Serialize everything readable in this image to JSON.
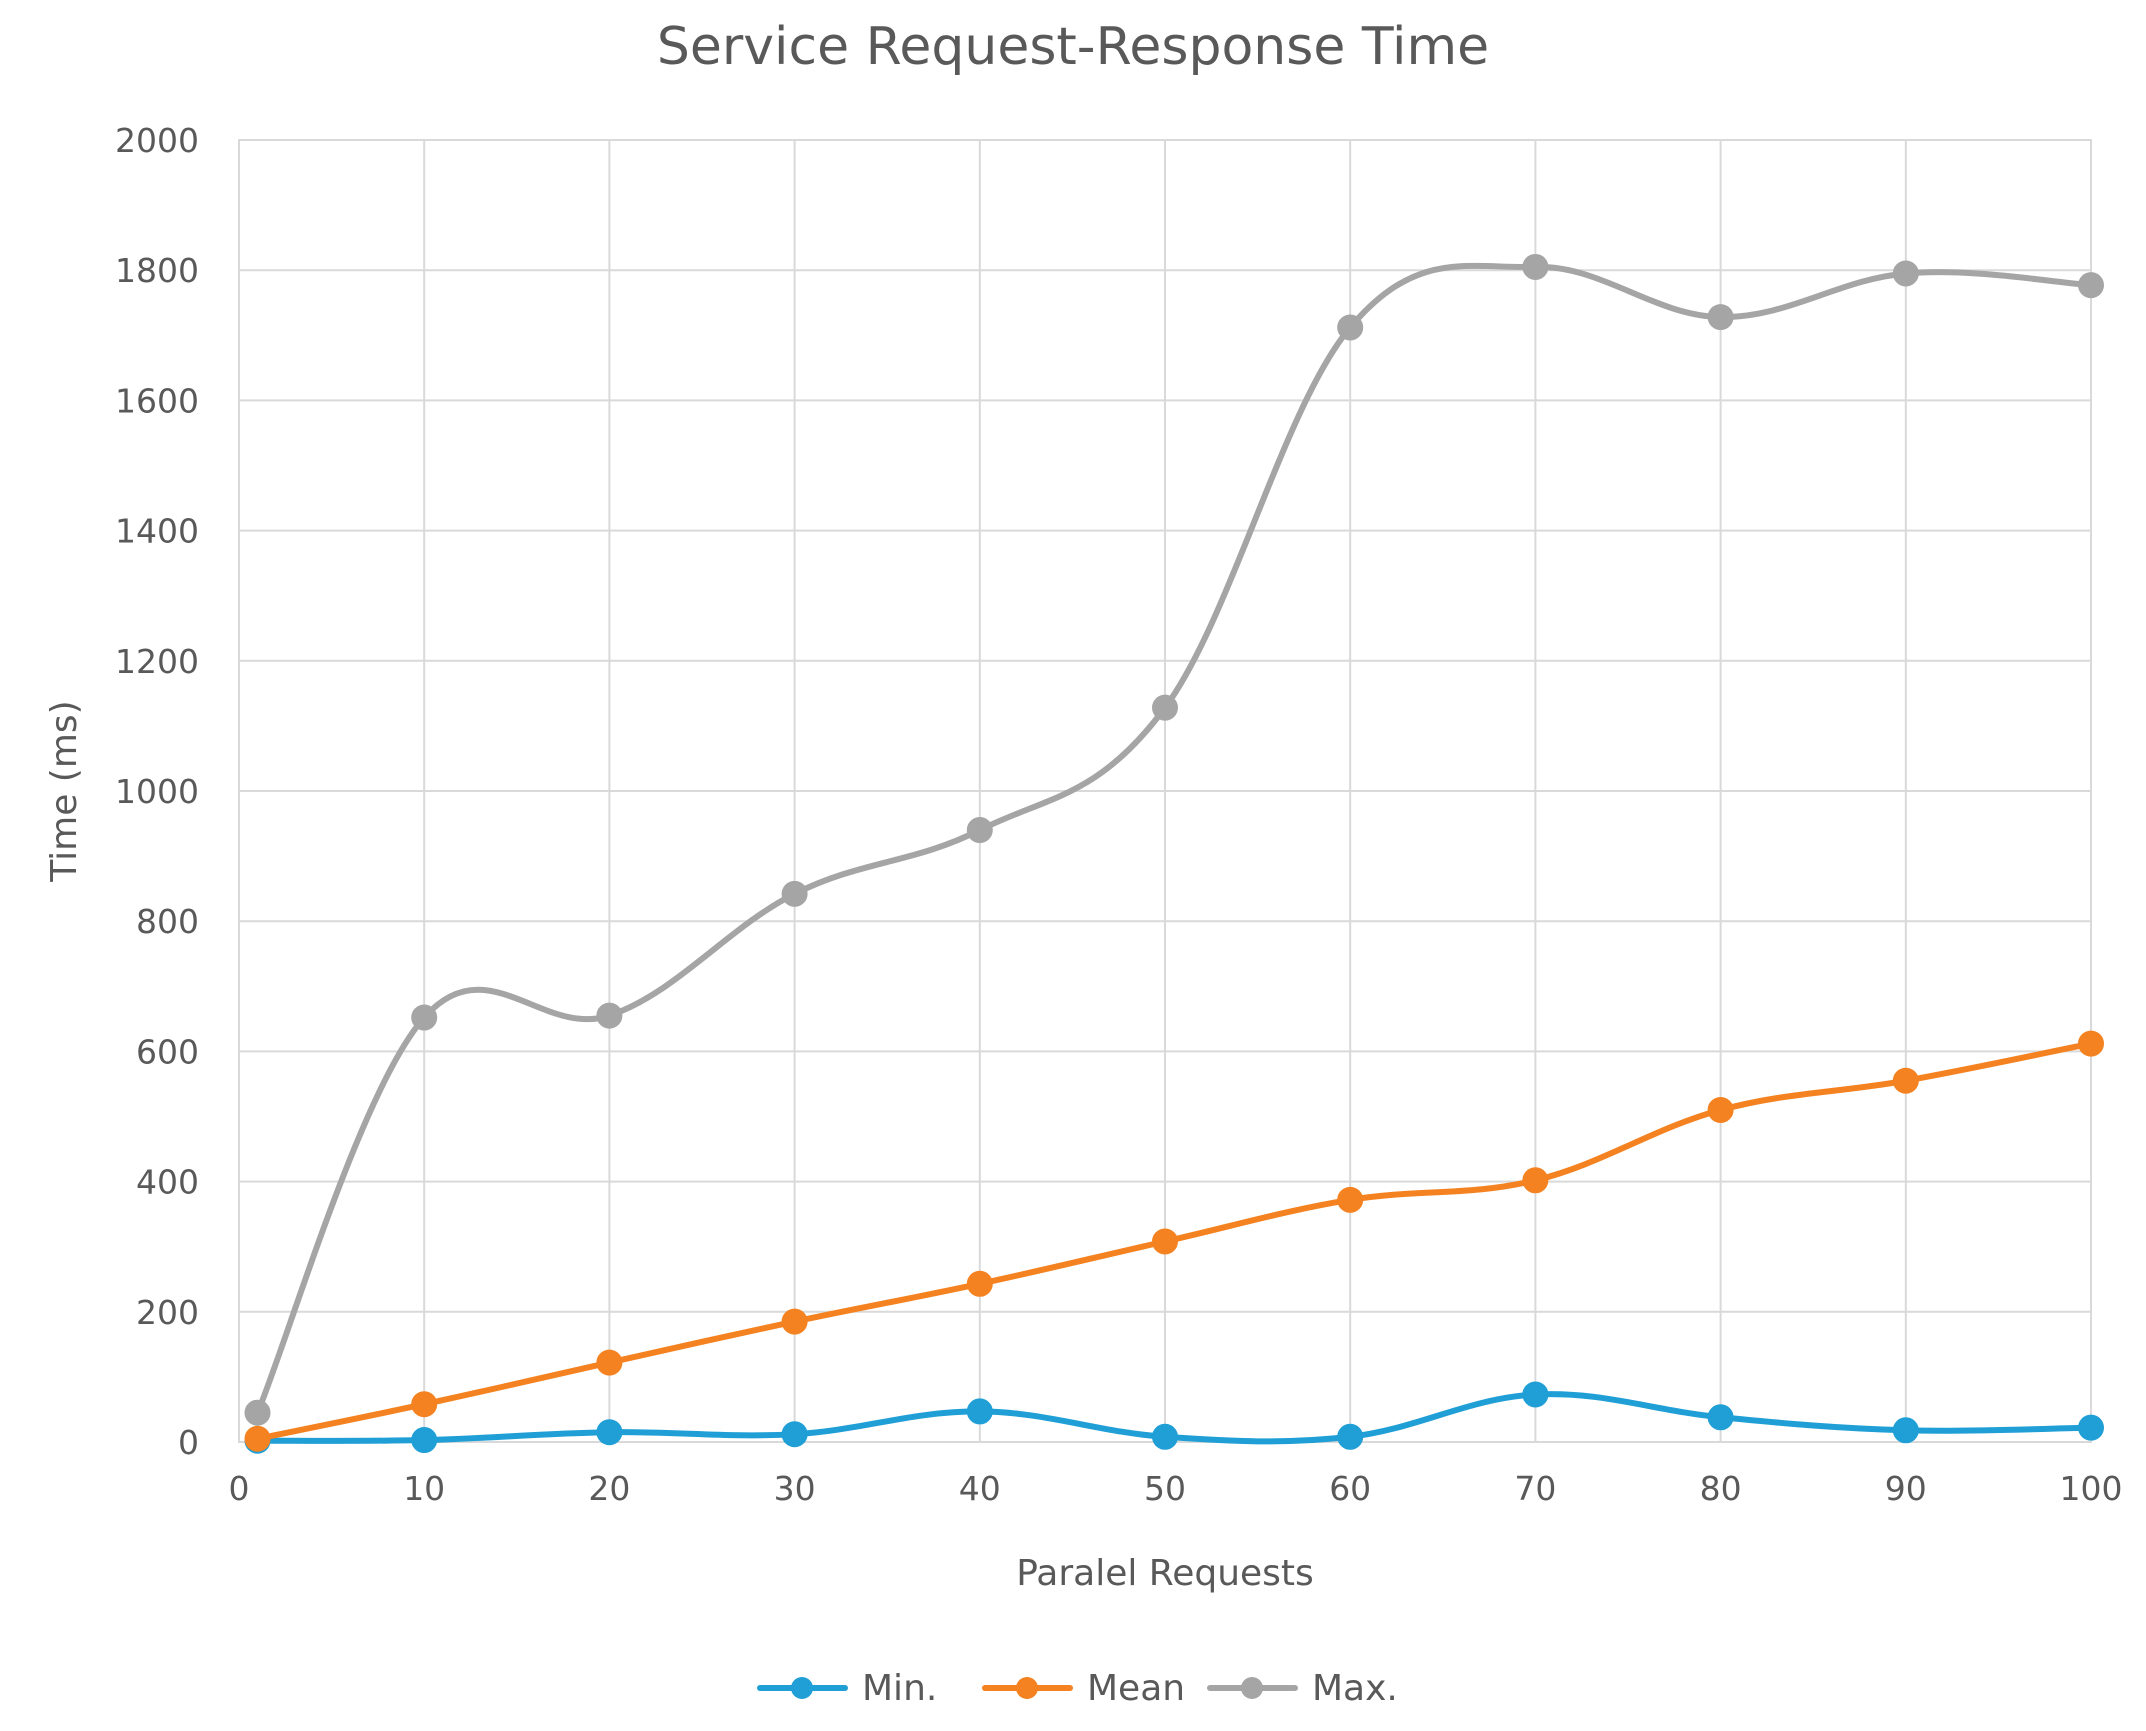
{
  "chart_data": {
    "type": "line",
    "title": "Service Request-Response Time",
    "xlabel": "Paralel Requests",
    "ylabel": "Time (ms)",
    "xlim": [
      0,
      100
    ],
    "ylim": [
      0,
      2000
    ],
    "x_ticks": [
      0,
      10,
      20,
      30,
      40,
      50,
      60,
      70,
      80,
      90,
      100
    ],
    "y_ticks": [
      0,
      200,
      400,
      600,
      800,
      1000,
      1200,
      1400,
      1600,
      1800,
      2000
    ],
    "grid": true,
    "legend_position": "bottom",
    "x": [
      1,
      10,
      20,
      30,
      40,
      50,
      60,
      70,
      80,
      90,
      100
    ],
    "series": [
      {
        "name": "Min.",
        "color": "#1f9fd6",
        "values": [
          2,
          3,
          15,
          12,
          47,
          8,
          8,
          73,
          38,
          18,
          22
        ]
      },
      {
        "name": "Mean",
        "color": "#f58220",
        "values": [
          5,
          58,
          122,
          185,
          243,
          308,
          372,
          402,
          510,
          555,
          612
        ]
      },
      {
        "name": "Max.",
        "color": "#a5a5a5",
        "values": [
          45,
          652,
          655,
          842,
          940,
          1128,
          1712,
          1805,
          1728,
          1795,
          1777
        ]
      }
    ]
  }
}
